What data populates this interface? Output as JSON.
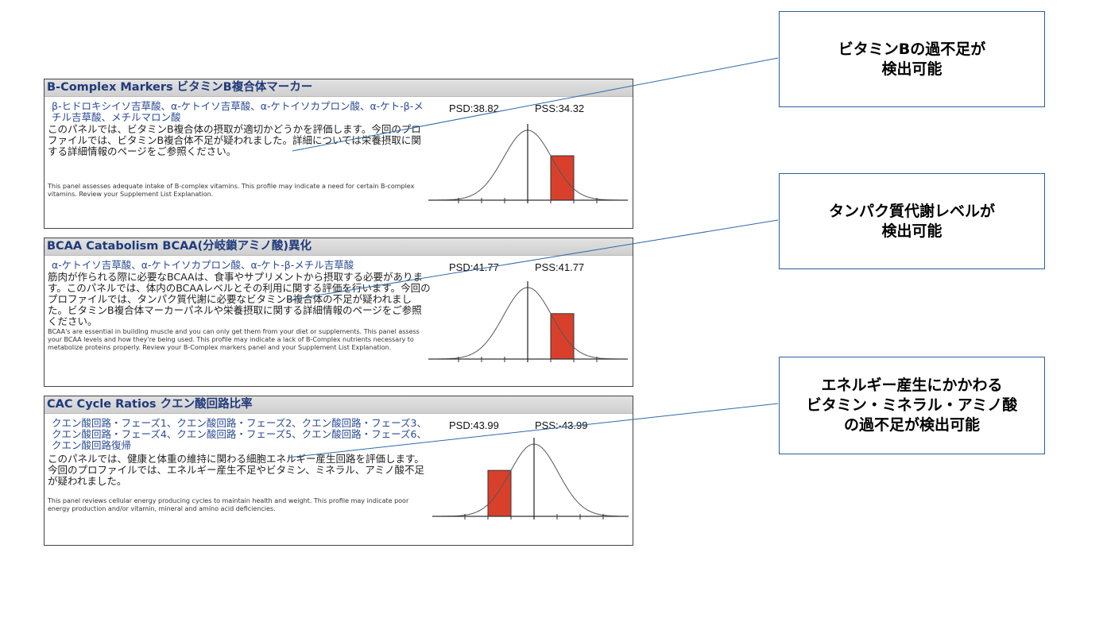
{
  "panels": [
    {
      "title": "B-Complex Markers  ビタミンB複合体マーカー",
      "markers": "β-ヒドロキシイソ吉草酸、α-ケトイソ吉草酸、α-ケトイソカプロン酸、α-ケト-β-メチル吉草酸、メチルマロン酸",
      "description_jp": "このパネルでは、ビタミンB複合体の摂取が適切かどうかを評価します。今回のプロファイルでは、ビタミンB複合体不足が疑われました。詳細については栄養摂取に関する詳細情報のページをご参照ください。",
      "description_en": "This panel assesses adequate intake of B-complex vitamins. This profile may indicate a need for certain B-complex vitamins. Review your Supplement List Explanation.",
      "psd": "PSD:38.82",
      "pss": "PSS:34.32"
    },
    {
      "title": "BCAA Catabolism  BCAA(分岐鎖アミノ酸)異化",
      "markers": "α-ケトイソ吉草酸、α-ケトイソカプロン酸、α-ケト-β-メチル吉草酸",
      "description_jp": "筋肉が作られる際に必要なBCAAは、食事やサプリメントから摂取する必要があります。このパネルでは、体内のBCAAレベルとその利用に関する評価を行います。今回のプロファイルでは、タンパク質代謝に必要なビタミンB複合体の不足が疑われました。ビタミンB複合体マーカーパネルや栄養摂取に関する詳細情報のページをご参照ください。",
      "description_en": "BCAA's are essential in building muscle and you can only get them from your diet or supplements. This panel assess your BCAA levels and how they're being used. This profile may indicate a lack of B-Complex nutrients necessary to metabolize proteins properly. Review your B-Complex markers panel and your Supplement List Explanation.",
      "psd": "PSD:41.77",
      "pss": "PSS:41.77"
    },
    {
      "title": "CAC Cycle Ratios  クエン酸回路比率",
      "markers": "クエン酸回路・フェーズ1、クエン酸回路・フェーズ2、クエン酸回路・フェーズ3、クエン酸回路・フェーズ4、クエン酸回路・フェーズ5、クエン酸回路・フェーズ6、クエン酸回路復帰",
      "description_jp": "このパネルでは、健康と体重の維持に関わる細胞エネルギー産生回路を評価します。今回のプロファイルでは、エネルギー産生不足やビタミン、ミネラル、アミノ酸不足が疑われました。",
      "description_en": "This panel reviews cellular energy producing cycles to maintain health and weight. This profile may indicate poor energy production and/or vitamin, mineral and amino acid deficiencies.",
      "psd": "PSD:43.99",
      "pss": "PSS:-43.99"
    }
  ],
  "callouts": [
    "ビタミンBの過不足が\n検出可能",
    "タンパク質代謝レベルが\n検出可能",
    "エネルギー産生にかかわる\nビタミン・ミネラル・アミノ酸\nの過不足が検出可能"
  ],
  "chart_data": [
    {
      "type": "bar",
      "description_curve": "normal distribution",
      "bar_sd_range": [
        1,
        2
      ],
      "tick_sd": [
        -3,
        -2,
        -1,
        0,
        1,
        2,
        3
      ]
    },
    {
      "type": "bar",
      "description_curve": "normal distribution",
      "bar_sd_range": [
        1,
        2
      ],
      "tick_sd": [
        -3,
        -2,
        -1,
        0,
        1,
        2,
        3
      ]
    },
    {
      "type": "bar",
      "description_curve": "normal distribution",
      "bar_sd_range": [
        -2,
        -1
      ],
      "tick_sd": [
        -3,
        -2,
        -1,
        0,
        1,
        2,
        3
      ]
    }
  ],
  "colors": {
    "bar": "#d9402b",
    "header_text": "#1f3a7a",
    "marker_text": "#2a4a94",
    "callout_border": "#2d5f99",
    "leader_line": "#2d6aa8"
  }
}
